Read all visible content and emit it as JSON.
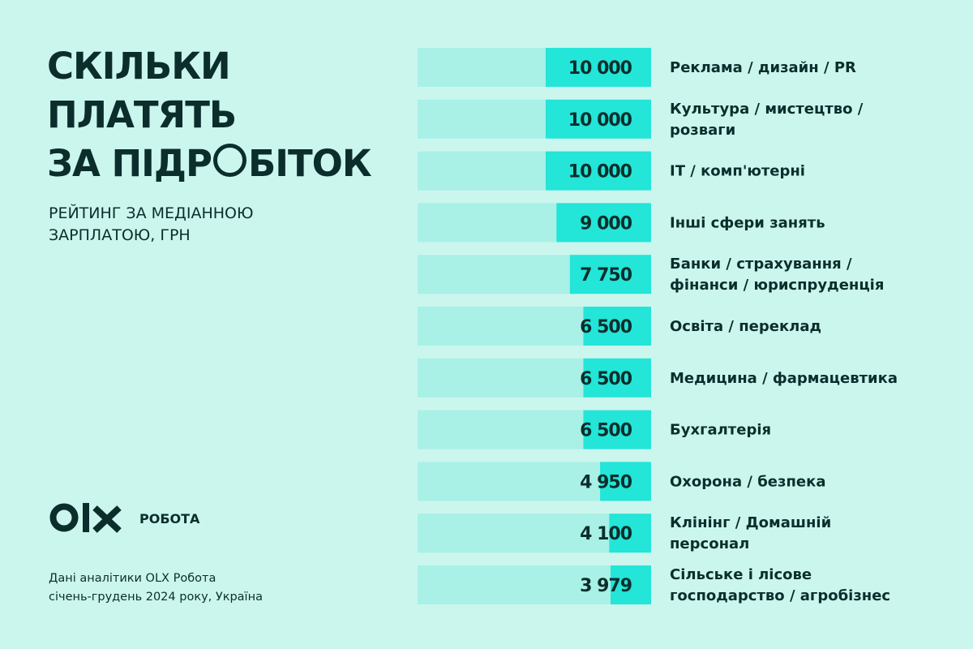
{
  "title_lines": [
    "СКІЛЬКИ",
    "ПЛАТЯТЬ"
  ],
  "title_line3_before": "ЗА ПІДР",
  "title_line3_after": "БІТОК",
  "subtitle_lines": [
    "РЕЙТИНГ ЗА МЕДІАННОЮ",
    "ЗАРПЛАТОЮ, ГРН"
  ],
  "logo": {
    "text": "OLX",
    "brand": "РОБОТА",
    "icon": "olx-logo-icon"
  },
  "source_lines": [
    "Дані аналітики OLX Робота",
    "січень-грудень 2024 року, Україна"
  ],
  "colors": {
    "background": "#cbf6ee",
    "track": "#a9f0e6",
    "bar": "#23e5d8",
    "text": "#0b2e2c"
  },
  "chart_data": {
    "type": "bar",
    "orientation": "horizontal",
    "title": "СКІЛЬКИ ПЛАТЯТЬ ЗА ПІДРОБІТОК",
    "subtitle": "РЕЙТИНГ ЗА МЕДІАННОЮ ЗАРПЛАТОЮ, ГРН",
    "categories": [
      [
        "Реклама / дизайн / PR"
      ],
      [
        "Культура / мистецтво /",
        "розваги"
      ],
      [
        "IT / комп'ютерні"
      ],
      [
        "Інші сфери занять"
      ],
      [
        "Банки / страхування /",
        "фінанси  / юриспруденція"
      ],
      [
        "Освіта / переклад"
      ],
      [
        "Медицина / фармацевтика"
      ],
      [
        "Бухгалтерія"
      ],
      [
        "Охорона / безпека"
      ],
      [
        "Клінінг / Домашній",
        "персонал"
      ],
      [
        "Сільське і лісове",
        "господарство / агробізнес"
      ]
    ],
    "values": [
      10000,
      10000,
      10000,
      9000,
      7750,
      6500,
      6500,
      6500,
      4950,
      4100,
      3979
    ],
    "value_labels": [
      "10 000",
      "10 000",
      "10 000",
      "9 000",
      "7 750",
      "6 500",
      "6 500",
      "6 500",
      "4 950",
      "4 100",
      "3 979"
    ],
    "unit": "грн",
    "grid": false,
    "legend": "none"
  }
}
